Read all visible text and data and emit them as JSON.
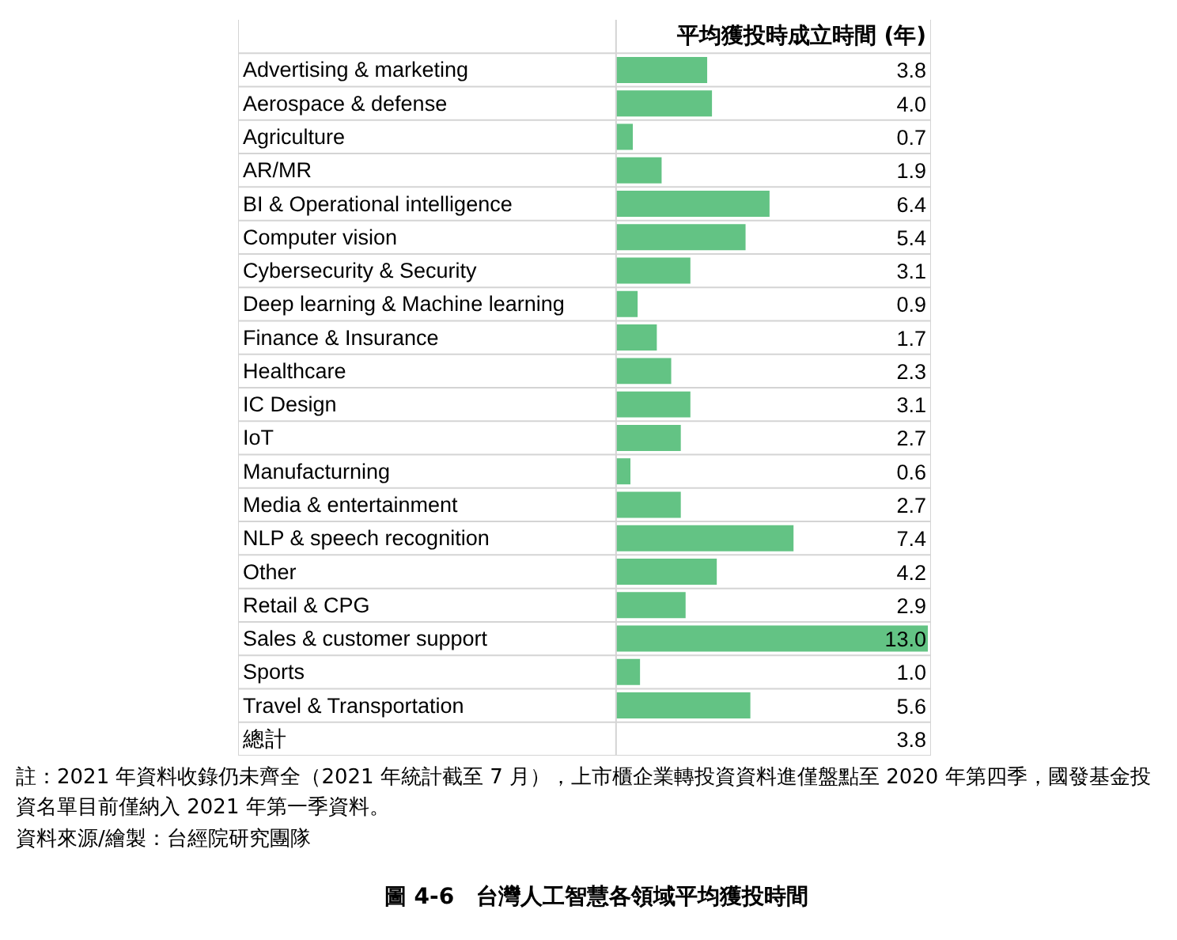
{
  "chart_data": {
    "type": "bar",
    "orientation": "horizontal",
    "relative": false,
    "title": "圖 4-6　台灣人工智慧各領域平均獲投時間",
    "xlabel": "平均獲投時成立時間 (年)",
    "categories": [
      "Advertising & marketing",
      "Aerospace & defense",
      "Agriculture",
      "AR/MR",
      "BI & Operational intelligence",
      "Computer vision",
      "Cybersecurity & Security",
      "Deep learning & Machine learning",
      "Finance & Insurance",
      "Healthcare",
      "IC Design",
      "IoT",
      "Manufacturning",
      "Media & entertainment",
      "NLP & speech recognition",
      "Other",
      "Retail & CPG",
      "Sales & customer support",
      "Sports",
      "Travel & Transportation",
      "總計"
    ],
    "values": [
      3.8,
      4.0,
      0.7,
      1.9,
      6.4,
      5.4,
      3.1,
      0.9,
      1.7,
      2.3,
      3.1,
      2.7,
      0.6,
      2.7,
      7.4,
      4.2,
      2.9,
      13.0,
      1.0,
      5.6,
      null
    ],
    "value_labels": [
      "3.8",
      "4.0",
      "0.7",
      "1.9",
      "6.4",
      "5.4",
      "3.1",
      "0.9",
      "1.7",
      "2.3",
      "3.1",
      "2.7",
      "0.6",
      "2.7",
      "7.4",
      "4.2",
      "2.9",
      "13.0",
      "1.0",
      "5.6",
      "3.8"
    ],
    "color": "#63c384",
    "grid": "y",
    "tick_labels": "y",
    "annotations": [
      "註：2021 年資料收錄仍未齊全（2021 年統計截至 7 月），上市櫃企業轉投資資料進僅盤點至 2020 年第四季，國發基金投資名單目前僅納入 2021 年第一季資料。",
      "資料來源/繪製：台經院研究團隊"
    ]
  }
}
